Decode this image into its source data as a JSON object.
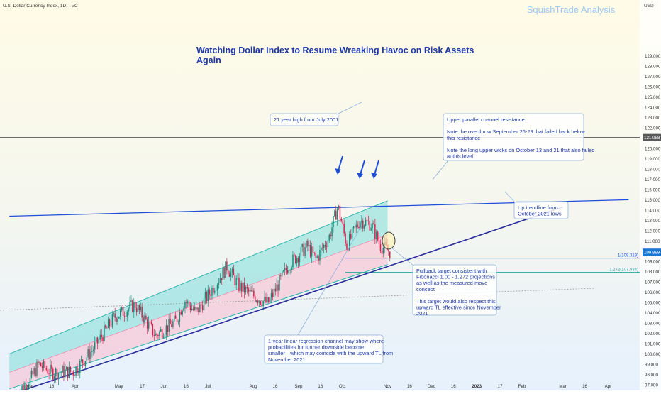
{
  "header": {
    "symbol_line": "U.S. Dollar Currency Index, 1D, TVC",
    "brand": "SquishTrade Analysis",
    "currency": "USD"
  },
  "headline": {
    "line1": "Watching Dollar Index to Resume Wreaking Havoc on Risk Assets",
    "line2": "Again"
  },
  "colors": {
    "background_top": "#fffbe6",
    "background_bottom": "#e6f1fd",
    "channel_upper_fill": "#7fdcd8",
    "channel_lower_fill": "#f7c6d6",
    "up_candle": "#1e8a78",
    "down_candle": "#d6204f",
    "trend_blue": "#1f4fd8",
    "trend_navy": "#2a2d9a",
    "fib_teal": "#26a69a",
    "annotation_text": "#1f3aa8",
    "brand": "#9cc9f2",
    "price_tag": "#1976d2"
  },
  "price_labels": {
    "y121": "121.058",
    "current": "109.899",
    "fib100": "1(109.319)",
    "fib1272": "1.272(107.934)"
  },
  "annotations": {
    "high_2001": "21 year high from July 2001",
    "upper_channel": [
      "Upper parallel channel resistance",
      "",
      "Note the overthrow September 26-29 that failed back below",
      "this resistance",
      "",
      "Note the long upper wicks on October 13 and 21 that also failed",
      "at this level"
    ],
    "up_trendline": [
      "Up trendline from",
      "October 2021 lows"
    ],
    "pullback": [
      "Pullback target consistent with",
      "Fibonacci 1.00 - 1.272 projections",
      "as well as the measured-move",
      "concept",
      "",
      "This target would also respect this",
      "upward TL effective since November",
      "2021"
    ],
    "regression": [
      "1-year linear regression channel may show where",
      "probabilities for further downside become",
      "smaller—which may coincide with the upward TL from",
      "November 2021"
    ]
  },
  "chart_data": {
    "type": "candlestick",
    "title": "U.S. Dollar Currency Index, 1D, TVC",
    "ylabel": "USD",
    "ylim": [
      96.4,
      130.4
    ],
    "y_ticks": [
      97,
      98,
      99,
      100,
      101,
      102,
      103,
      104,
      105,
      106,
      107,
      108,
      109,
      110,
      111,
      112,
      113,
      114,
      115,
      116,
      117,
      118,
      119,
      120,
      121,
      122,
      123,
      124,
      125,
      126,
      127,
      128,
      129
    ],
    "x_ticks": [
      {
        "label": "Mar",
        "date": "2022-03-01"
      },
      {
        "label": "16",
        "date": "2022-03-16"
      },
      {
        "label": "Apr",
        "date": "2022-04-01"
      },
      {
        "label": "May",
        "date": "2022-05-01"
      },
      {
        "label": "17",
        "date": "2022-05-17"
      },
      {
        "label": "Jun",
        "date": "2022-06-01"
      },
      {
        "label": "16",
        "date": "2022-06-16"
      },
      {
        "label": "Jul",
        "date": "2022-07-01"
      },
      {
        "label": "Aug",
        "date": "2022-08-01"
      },
      {
        "label": "16",
        "date": "2022-08-16"
      },
      {
        "label": "Sep",
        "date": "2022-09-01"
      },
      {
        "label": "16",
        "date": "2022-09-16"
      },
      {
        "label": "Oct",
        "date": "2022-10-01"
      },
      {
        "label": "Nov",
        "date": "2022-11-01"
      },
      {
        "label": "16",
        "date": "2022-11-16"
      },
      {
        "label": "Dec",
        "date": "2022-12-01"
      },
      {
        "label": "16",
        "date": "2022-12-16"
      },
      {
        "label": "2023",
        "date": "2023-01-01"
      },
      {
        "label": "17",
        "date": "2023-01-17"
      },
      {
        "label": "Feb",
        "date": "2023-02-01"
      },
      {
        "label": "Mar",
        "date": "2023-03-01"
      },
      {
        "label": "16",
        "date": "2023-03-16"
      },
      {
        "label": "Apr",
        "date": "2023-04-01"
      }
    ],
    "candle_anchors": [
      {
        "date": "2022-02-20",
        "close": 96.2
      },
      {
        "date": "2022-03-01",
        "close": 97.4
      },
      {
        "date": "2022-03-07",
        "close": 99.0
      },
      {
        "date": "2022-03-16",
        "close": 98.2
      },
      {
        "date": "2022-03-31",
        "close": 98.3
      },
      {
        "date": "2022-04-13",
        "close": 100.4
      },
      {
        "date": "2022-04-28",
        "close": 103.6
      },
      {
        "date": "2022-05-12",
        "close": 104.8
      },
      {
        "date": "2022-05-26",
        "close": 101.8
      },
      {
        "date": "2022-06-09",
        "close": 103.2
      },
      {
        "date": "2022-06-15",
        "close": 105.2
      },
      {
        "date": "2022-06-23",
        "close": 104.0
      },
      {
        "date": "2022-07-14",
        "close": 108.5
      },
      {
        "date": "2022-07-22",
        "close": 106.6
      },
      {
        "date": "2022-08-02",
        "close": 105.6
      },
      {
        "date": "2022-08-11",
        "close": 104.9
      },
      {
        "date": "2022-08-26",
        "close": 108.8
      },
      {
        "date": "2022-09-07",
        "close": 110.5
      },
      {
        "date": "2022-09-13",
        "close": 109.2
      },
      {
        "date": "2022-09-22",
        "close": 111.4
      },
      {
        "date": "2022-09-28",
        "close": 114.4
      },
      {
        "date": "2022-10-04",
        "close": 110.5
      },
      {
        "date": "2022-10-13",
        "close": 113.0
      },
      {
        "date": "2022-10-21",
        "close": 112.6
      },
      {
        "date": "2022-10-27",
        "close": 110.5
      },
      {
        "date": "2022-11-03",
        "close": 109.9
      }
    ],
    "levels": {
      "high_2001": 121.058,
      "last_close": 109.899,
      "fib_1_0": 109.319,
      "fib_1_272": 107.934,
      "dotted_level": 104.0
    },
    "lines": {
      "upper_channel_resistance": [
        {
          "date": "2022-02-15",
          "value": 113.4
        },
        {
          "date": "2023-04-15",
          "value": 115.0
        }
      ],
      "up_trendline": [
        {
          "date": "2022-02-15",
          "value": 96.0
        },
        {
          "date": "2023-03-01",
          "value": 114.3
        }
      ],
      "regression_upper": [
        {
          "date": "2022-02-15",
          "value": 100.0
        },
        {
          "date": "2022-11-01",
          "value": 114.9
        }
      ],
      "regression_mid": [
        {
          "date": "2022-02-15",
          "value": 98.2
        },
        {
          "date": "2022-11-01",
          "value": 111.6
        }
      ],
      "regression_lower": [
        {
          "date": "2022-02-15",
          "value": 96.6
        },
        {
          "date": "2022-11-01",
          "value": 108.7
        }
      ]
    },
    "grid": false
  }
}
